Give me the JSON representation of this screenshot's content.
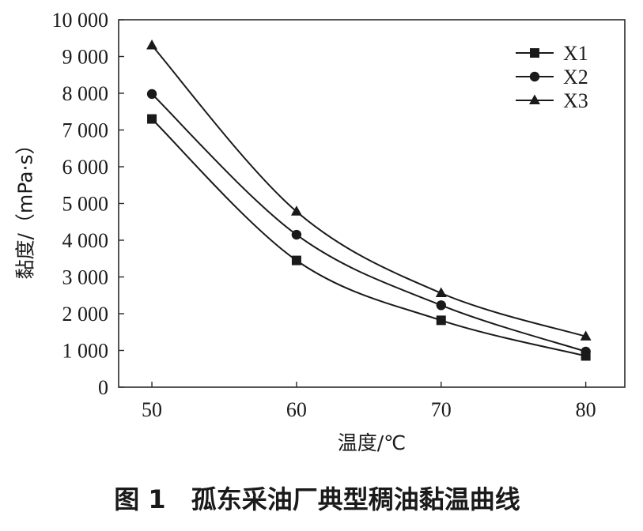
{
  "chart_data": {
    "type": "line",
    "x": [
      50,
      60,
      70,
      80
    ],
    "series": [
      {
        "name": "X1",
        "marker": "square",
        "values": [
          7300,
          3450,
          1820,
          850
        ]
      },
      {
        "name": "X2",
        "marker": "circle",
        "values": [
          7980,
          4150,
          2230,
          970
        ]
      },
      {
        "name": "X3",
        "marker": "triangle",
        "values": [
          9300,
          4780,
          2560,
          1380
        ]
      }
    ],
    "title": "",
    "xlabel": "温度/℃",
    "ylabel": "黏度/（mPa·s）",
    "xlim": [
      47.7,
      82.7
    ],
    "ylim": [
      0,
      10000
    ],
    "xticks": [
      50,
      60,
      70,
      80
    ],
    "xtick_labels": [
      "50",
      "60",
      "70",
      "80"
    ],
    "yticks": [
      0,
      1000,
      2000,
      3000,
      4000,
      5000,
      6000,
      7000,
      8000,
      9000,
      10000
    ],
    "ytick_labels": [
      "0",
      "1 000",
      "2 000",
      "3 000",
      "4 000",
      "5 000",
      "6 000",
      "7 000",
      "8 000",
      "9 000",
      "10 000"
    ],
    "grid": false,
    "smooth_lines": true,
    "legend_position": "top-right",
    "line_color": "#1a1a1a"
  },
  "figure": {
    "caption": "图 1　孤东采油厂典型稠油黏温曲线"
  }
}
